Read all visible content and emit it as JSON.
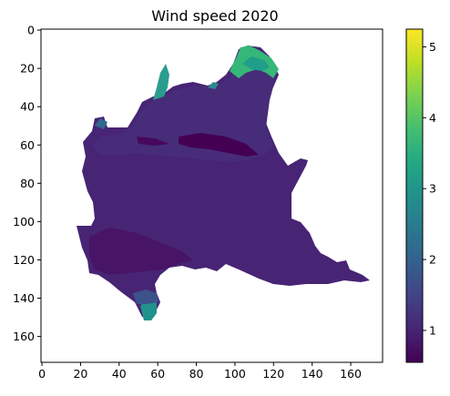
{
  "chart_data": {
    "type": "heatmap",
    "title": "Wind speed 2020",
    "xlabel": "",
    "ylabel": "",
    "colormap": "viridis",
    "grid": false,
    "image_extent": {
      "x": [
        -0.5,
        176.5
      ],
      "y": [
        173.5,
        -0.5
      ]
    },
    "xticks": [
      0,
      20,
      40,
      60,
      80,
      100,
      120,
      140,
      160
    ],
    "yticks": [
      0,
      20,
      40,
      60,
      80,
      100,
      120,
      140,
      160
    ],
    "colorbar": {
      "min": 0.55,
      "max": 5.25,
      "ticks": [
        1,
        2,
        3,
        4,
        5
      ]
    },
    "typical_values": {
      "lowland_plain": 1.0,
      "northern_prealps": 1.2,
      "alpine_ridges_peak": 3.5,
      "southern_apennine_tip": 2.5
    }
  }
}
